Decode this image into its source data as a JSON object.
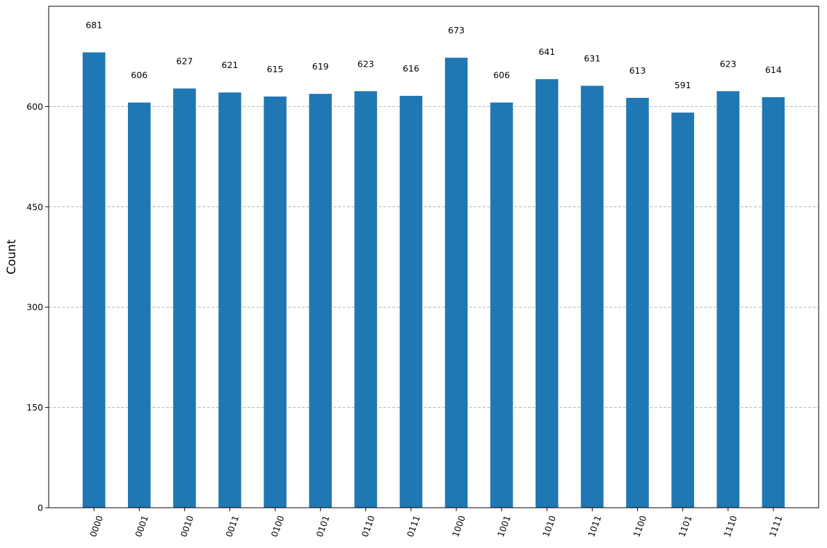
{
  "chart_data": {
    "type": "bar",
    "title": "",
    "xlabel": "",
    "ylabel": "Count",
    "categories": [
      "0000",
      "0001",
      "0010",
      "0011",
      "0100",
      "0101",
      "0110",
      "0111",
      "1000",
      "1001",
      "1010",
      "1011",
      "1100",
      "1101",
      "1110",
      "1111"
    ],
    "values": [
      681,
      606,
      627,
      621,
      615,
      619,
      623,
      616,
      673,
      606,
      641,
      631,
      613,
      591,
      623,
      614
    ],
    "ylim": [
      0,
      750
    ],
    "yticks": [
      0,
      150,
      300,
      450,
      600
    ],
    "grid": "horizontal dashed",
    "bar_color": "#1f77b4",
    "grid_color": "#b0b0b0",
    "data_labels": true,
    "xtick_rotation": "70"
  }
}
